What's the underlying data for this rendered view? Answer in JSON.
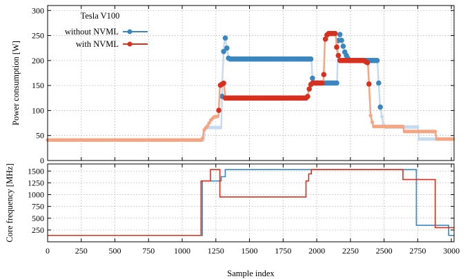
{
  "chart_data": [
    {
      "type": "line",
      "panel": "power",
      "ylabel": "Power consumption [W]",
      "xlim": [
        0,
        3020
      ],
      "ylim": [
        0,
        310
      ],
      "yticks": [
        0,
        50,
        100,
        150,
        200,
        250,
        300
      ],
      "grid": true,
      "legend": {
        "title": "Tesla V100",
        "placement": "top-left"
      },
      "series": [
        {
          "name": "without NVML",
          "color": "#3a86c0",
          "light_color": "#c6dbef",
          "marker": "circle",
          "points": [
            [
              0,
              41
            ],
            [
              1160,
              41
            ],
            [
              1170,
              66
            ],
            [
              1290,
              66
            ],
            [
              1300,
              170
            ],
            [
              1310,
              230
            ],
            [
              1320,
              245
            ],
            [
              1345,
              203
            ],
            [
              1960,
              203
            ],
            [
              1970,
              155
            ],
            [
              2150,
              155
            ],
            [
              2160,
              240
            ],
            [
              2170,
              254
            ],
            [
              2210,
              215
            ],
            [
              2240,
              200
            ],
            [
              2450,
              200
            ],
            [
              2470,
              110
            ],
            [
              2490,
              78
            ],
            [
              2500,
              67
            ],
            [
              2750,
              67
            ],
            [
              2760,
              43
            ],
            [
              3020,
              43
            ]
          ]
        },
        {
          "name": "with NVML",
          "color": "#d7301f",
          "light_color": "#f4a582",
          "marker": "circle",
          "points": [
            [
              0,
              41
            ],
            [
              1150,
              41
            ],
            [
              1160,
              60
            ],
            [
              1190,
              70
            ],
            [
              1210,
              80
            ],
            [
              1240,
              88
            ],
            [
              1270,
              88
            ],
            [
              1280,
              150
            ],
            [
              1310,
              155
            ],
            [
              1320,
              125
            ],
            [
              1930,
              125
            ],
            [
              1940,
              140
            ],
            [
              1960,
              155
            ],
            [
              2050,
              155
            ],
            [
              2060,
              240
            ],
            [
              2080,
              254
            ],
            [
              2140,
              254
            ],
            [
              2150,
              220
            ],
            [
              2170,
              200
            ],
            [
              2350,
              200
            ],
            [
              2380,
              195
            ],
            [
              2400,
              90
            ],
            [
              2420,
              68
            ],
            [
              2640,
              68
            ],
            [
              2650,
              58
            ],
            [
              2880,
              58
            ],
            [
              2890,
              43
            ],
            [
              3020,
              43
            ]
          ]
        }
      ]
    },
    {
      "type": "line",
      "panel": "frequency",
      "ylabel": "Core frequency [MHz]",
      "xlabel": "Sample index",
      "xlim": [
        0,
        3020
      ],
      "ylim": [
        0,
        1650
      ],
      "xticks": [
        0,
        250,
        500,
        750,
        1000,
        1250,
        1500,
        1750,
        2000,
        2250,
        2500,
        2750,
        3000
      ],
      "yticks": [
        250,
        500,
        750,
        1000,
        1250,
        1500
      ],
      "grid": true,
      "series": [
        {
          "name": "without NVML",
          "color": "#3a86c0",
          "points": [
            [
              0,
              135
            ],
            [
              1150,
              135
            ],
            [
              1150,
              1290
            ],
            [
              1290,
              1290
            ],
            [
              1290,
              1380
            ],
            [
              1320,
              1380
            ],
            [
              1320,
              1530
            ],
            [
              2740,
              1530
            ],
            [
              2740,
              350
            ],
            [
              2980,
              350
            ],
            [
              2980,
              135
            ],
            [
              3020,
              135
            ]
          ]
        },
        {
          "name": "with NVML",
          "color": "#d7301f",
          "points": [
            [
              0,
              135
            ],
            [
              1140,
              135
            ],
            [
              1140,
              1290
            ],
            [
              1210,
              1290
            ],
            [
              1210,
              1530
            ],
            [
              1280,
              1530
            ],
            [
              1280,
              950
            ],
            [
              1920,
              950
            ],
            [
              1920,
              1290
            ],
            [
              1940,
              1290
            ],
            [
              1940,
              1440
            ],
            [
              1960,
              1440
            ],
            [
              1960,
              1530
            ],
            [
              2640,
              1530
            ],
            [
              2640,
              1320
            ],
            [
              2880,
              1320
            ],
            [
              2880,
              300
            ],
            [
              3020,
              300
            ]
          ]
        }
      ]
    }
  ]
}
